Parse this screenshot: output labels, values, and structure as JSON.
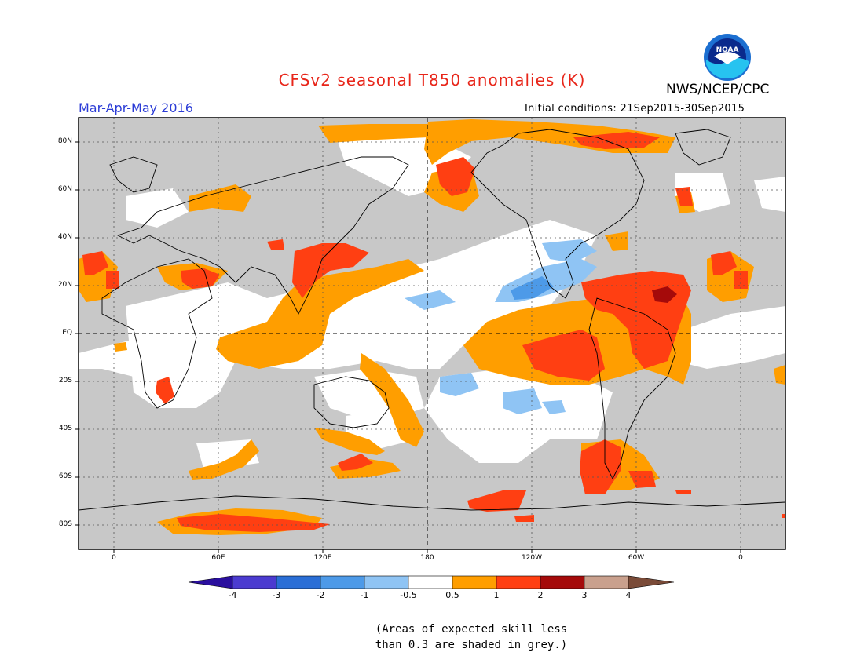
{
  "title": "CFSv2 seasonal T850 anomalies (K)",
  "agency": "NWS/NCEP/CPC",
  "logo_text": "NOAA",
  "season": "Mar-Apr-May 2016",
  "initial_conditions": "Initial conditions: 21Sep2015-30Sep2015",
  "lat_labels": [
    "80N",
    "60N",
    "40N",
    "20N",
    "EQ",
    "20S",
    "40S",
    "60S",
    "80S"
  ],
  "lon_labels": [
    "0",
    "60E",
    "120E",
    "180",
    "120W",
    "60W",
    "0"
  ],
  "colorbar": {
    "labels": [
      "-4",
      "-3",
      "-2",
      "-1",
      "-0.5",
      "0.5",
      "1",
      "2",
      "3",
      "4"
    ],
    "colors": [
      "#2a0f9e",
      "#4b3bd0",
      "#2a6ed6",
      "#4d9ae8",
      "#8fc4f4",
      "#ffffff",
      "#ff9e00",
      "#ff3f12",
      "#a50a0a",
      "#c9a08d",
      "#7a4b38"
    ]
  },
  "note_line1": "(Areas of expected skill less",
  "note_line2": "than 0.3 are shaded in grey.)",
  "colors": {
    "skill_grey": "#c8c8c8",
    "neutral": "#ffffff",
    "warm_05_1": "#ff9e00",
    "warm_1_2": "#ff3f12",
    "warm_2_3": "#a50a0a",
    "cool_05_1": "#8fc4f4",
    "cool_1_2": "#4d9ae8"
  }
}
